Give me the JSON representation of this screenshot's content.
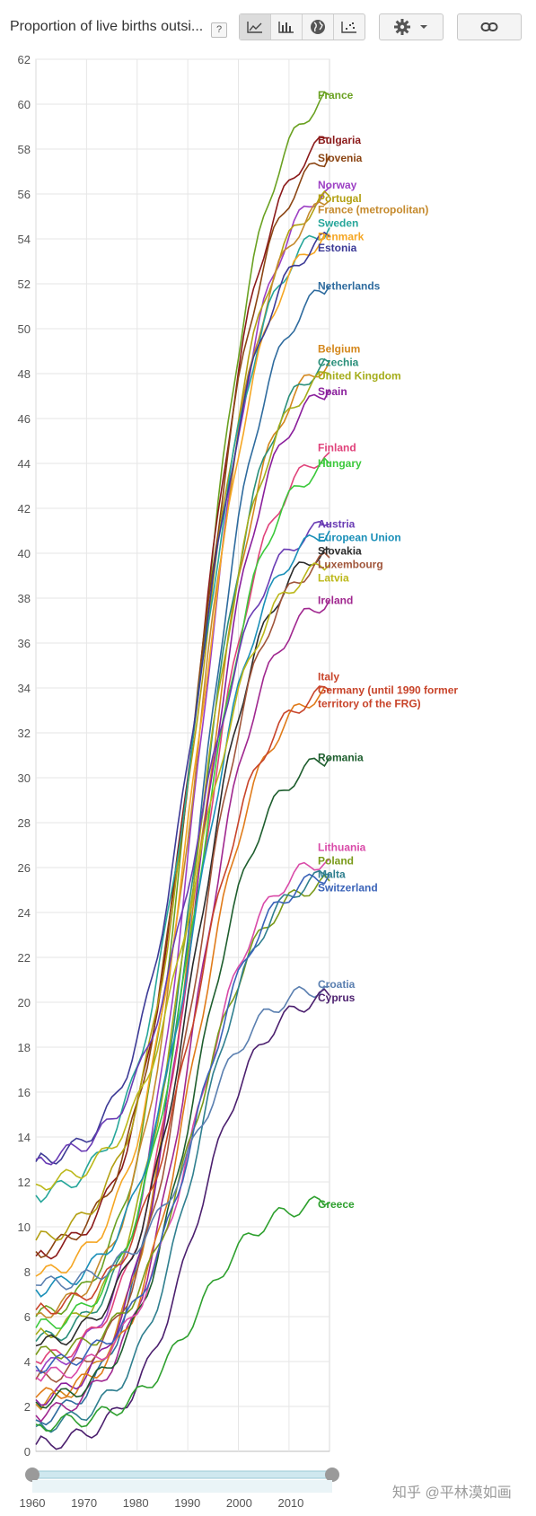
{
  "toolbar": {
    "title": "Proportion of live births outsi...",
    "help": "?",
    "icons": [
      "line-chart-icon",
      "bar-chart-icon",
      "globe-icon",
      "scatter-icon",
      "gear-icon",
      "chevron-down-icon",
      "link-icon"
    ]
  },
  "watermark": "知乎 @平林漠如画",
  "chart_data": {
    "type": "line",
    "y_range": [
      0,
      62
    ],
    "y_ticks": [
      "0",
      "2",
      "4",
      "6",
      "8",
      "10",
      "12",
      "14",
      "16",
      "18",
      "20",
      "22",
      "24",
      "26",
      "28",
      "30",
      "32",
      "34",
      "36",
      "38",
      "40",
      "42",
      "44",
      "46",
      "48",
      "50",
      "52",
      "54",
      "56",
      "58",
      "60",
      "62"
    ],
    "x_range": [
      1960,
      2018
    ],
    "x_ticks": [
      "1970",
      "1980",
      "1990",
      "2000",
      "2010"
    ],
    "scrubber_ticks": [
      "1960",
      "1970",
      "1980",
      "1990",
      "2000",
      "2010"
    ],
    "grid": true,
    "legend": "right",
    "series": [
      {
        "name": "France",
        "color": "#6aa121",
        "start": 6.0,
        "end": 60.4
      },
      {
        "name": "Bulgaria",
        "color": "#8b1a1a",
        "start": 8.7,
        "end": 58.5
      },
      {
        "name": "Slovenia",
        "color": "#8b4513",
        "start": 8.9,
        "end": 57.7
      },
      {
        "name": "Norway",
        "color": "#9c3fc4",
        "start": 3.6,
        "end": 56.3
      },
      {
        "name": "Portugal",
        "color": "#b3a012",
        "start": 9.4,
        "end": 55.9
      },
      {
        "name": "France (metropolitan)",
        "color": "#c58a2d",
        "start": 6.1,
        "end": 55.7
      },
      {
        "name": "Sweden",
        "color": "#26a69a",
        "start": 11.4,
        "end": 54.5
      },
      {
        "name": "Denmark",
        "color": "#f5a623",
        "start": 7.8,
        "end": 54.2
      },
      {
        "name": "Estonia",
        "color": "#3c3a96",
        "start": 12.9,
        "end": 54.1
      },
      {
        "name": "Netherlands",
        "color": "#2e6b9e",
        "start": 1.4,
        "end": 51.9
      },
      {
        "name": "Belgium",
        "color": "#d4871c",
        "start": 2.1,
        "end": 48.5
      },
      {
        "name": "Czechia",
        "color": "#2a8f7a",
        "start": 4.9,
        "end": 48.5
      },
      {
        "name": "United Kingdom",
        "color": "#a5ad1a",
        "start": 5.2,
        "end": 48.0
      },
      {
        "name": "Spain",
        "color": "#8a1f9c",
        "start": 2.3,
        "end": 47.3
      },
      {
        "name": "Finland",
        "color": "#e0427a",
        "start": 4.0,
        "end": 44.5
      },
      {
        "name": "Hungary",
        "color": "#3bc93b",
        "start": 5.5,
        "end": 44.0
      },
      {
        "name": "Austria",
        "color": "#6a3cb4",
        "start": 13.0,
        "end": 41.3
      },
      {
        "name": "European Union",
        "color": "#1a8fb8",
        "start": 7.2,
        "end": 41.0
      },
      {
        "name": "Slovakia",
        "color": "#2b2b2b",
        "start": 4.7,
        "end": 40.2
      },
      {
        "name": "Luxembourg",
        "color": "#a0553a",
        "start": 3.2,
        "end": 39.8
      },
      {
        "name": "Latvia",
        "color": "#bcb81a",
        "start": 11.9,
        "end": 39.5
      },
      {
        "name": "Ireland",
        "color": "#a0278f",
        "start": 1.6,
        "end": 37.9
      },
      {
        "name": "Italy",
        "color": "#e07b1a",
        "start": 2.4,
        "end": 33.9
      },
      {
        "name": "Germany (until 1990 former territory of the FRG)",
        "color": "#c8442a",
        "start": 6.3,
        "end": 33.9
      },
      {
        "name": "Romania",
        "color": "#1e5e2e",
        "start": 2.2,
        "end": 30.9
      },
      {
        "name": "Lithuania",
        "color": "#d94aa8",
        "start": 3.3,
        "end": 26.4
      },
      {
        "name": "Poland",
        "color": "#7a9a1a",
        "start": 4.3,
        "end": 25.4
      },
      {
        "name": "Malta",
        "color": "#2f7f8f",
        "start": 1.1,
        "end": 25.7
      },
      {
        "name": "Switzerland",
        "color": "#3a63b8",
        "start": 3.8,
        "end": 25.7
      },
      {
        "name": "Croatia",
        "color": "#5a7fb0",
        "start": 7.4,
        "end": 20.7
      },
      {
        "name": "Cyprus",
        "color": "#4b1f6e",
        "start": 0.3,
        "end": 20.3
      },
      {
        "name": "Greece",
        "color": "#2ea02e",
        "start": 1.2,
        "end": 11.1
      }
    ],
    "legend_labels": [
      {
        "text": "France",
        "y": 60.4,
        "color": "#6aa121"
      },
      {
        "text": "Bulgaria",
        "y": 58.4,
        "color": "#8b1a1a"
      },
      {
        "text": "Slovenia",
        "y": 57.6,
        "color": "#8b4513"
      },
      {
        "text": "Norway",
        "y": 56.4,
        "color": "#9c3fc4"
      },
      {
        "text": "Portugal",
        "y": 55.8,
        "color": "#b3a012"
      },
      {
        "text": "France (metropolitan)",
        "y": 55.3,
        "color": "#c58a2d"
      },
      {
        "text": "Sweden",
        "y": 54.7,
        "color": "#26a69a"
      },
      {
        "text": "Denmark",
        "y": 54.1,
        "color": "#f5a623"
      },
      {
        "text": "Estonia",
        "y": 53.6,
        "color": "#3c3a96"
      },
      {
        "text": "Netherlands",
        "y": 51.9,
        "color": "#2e6b9e"
      },
      {
        "text": "Belgium",
        "y": 49.1,
        "color": "#d4871c"
      },
      {
        "text": "Czechia",
        "y": 48.5,
        "color": "#2a8f7a"
      },
      {
        "text": "United Kingdom",
        "y": 47.9,
        "color": "#a5ad1a"
      },
      {
        "text": "Spain",
        "y": 47.2,
        "color": "#8a1f9c"
      },
      {
        "text": "Finland",
        "y": 44.7,
        "color": "#e0427a"
      },
      {
        "text": "Hungary",
        "y": 44.0,
        "color": "#3bc93b"
      },
      {
        "text": "Austria",
        "y": 41.3,
        "color": "#6a3cb4"
      },
      {
        "text": "European Union",
        "y": 40.7,
        "color": "#1a8fb8"
      },
      {
        "text": "Slovakia",
        "y": 40.1,
        "color": "#2b2b2b"
      },
      {
        "text": "Luxembourg",
        "y": 39.5,
        "color": "#a0553a"
      },
      {
        "text": "Latvia",
        "y": 38.9,
        "color": "#bcb81a"
      },
      {
        "text": "Ireland",
        "y": 37.9,
        "color": "#a0278f"
      },
      {
        "text": "Italy",
        "y": 34.5,
        "color": "#c8442a"
      },
      {
        "text": "Germany (until 1990 former",
        "y": 33.9,
        "color": "#c8442a"
      },
      {
        "text": "territory of the FRG)",
        "y": 33.3,
        "color": "#c8442a"
      },
      {
        "text": "Romania",
        "y": 30.9,
        "color": "#1e5e2e"
      },
      {
        "text": "Lithuania",
        "y": 26.9,
        "color": "#d94aa8"
      },
      {
        "text": "Poland",
        "y": 26.3,
        "color": "#7a9a1a"
      },
      {
        "text": "Malta",
        "y": 25.7,
        "color": "#2f7f8f"
      },
      {
        "text": "Switzerland",
        "y": 25.1,
        "color": "#3a63b8"
      },
      {
        "text": "Croatia",
        "y": 20.8,
        "color": "#5a7fb0"
      },
      {
        "text": "Cyprus",
        "y": 20.2,
        "color": "#4b1f6e"
      },
      {
        "text": "Greece",
        "y": 11.0,
        "color": "#2ea02e"
      }
    ]
  }
}
